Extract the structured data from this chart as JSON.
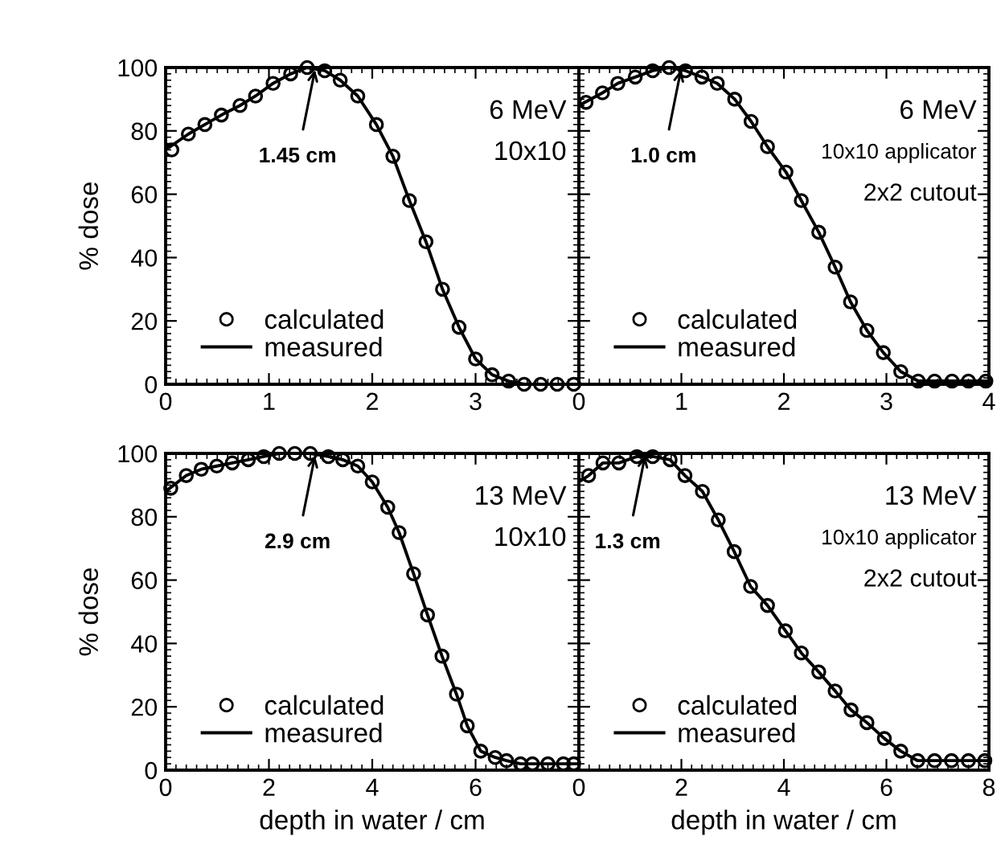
{
  "chart_data": [
    {
      "type": "line",
      "ylabel": "% dose",
      "xlim": [
        0,
        4
      ],
      "ylim": [
        0,
        100
      ],
      "xticks": [
        0,
        1,
        2,
        3,
        {
          "value": 4,
          "label": null
        }
      ],
      "yticks": [
        0,
        20,
        40,
        60,
        80,
        100
      ],
      "legend": "bottom left",
      "tick_labels": "xy",
      "annotations": [
        {
          "text": "1.45 cm",
          "x": 1.45,
          "y": 100
        },
        "6 MeV",
        "10x10"
      ],
      "series": [
        {
          "name": "calculated",
          "type": "scatter",
          "marker": "circle",
          "color": "#000000",
          "x": [
            0.06,
            0.22,
            0.38,
            0.54,
            0.72,
            0.87,
            1.04,
            1.21,
            1.37,
            1.54,
            1.69,
            1.86,
            2.04,
            2.2,
            2.36,
            2.52,
            2.68,
            2.84,
            3.0,
            3.16,
            3.32,
            3.47,
            3.63,
            3.79,
            3.95
          ],
          "values": [
            74,
            79,
            82,
            85,
            88,
            91,
            95,
            98,
            100,
            99,
            96,
            91,
            82,
            72,
            58,
            45,
            30,
            18,
            8,
            3,
            1,
            0,
            0,
            0,
            0
          ]
        },
        {
          "name": "measured",
          "line_style": "solid",
          "color": "#000000",
          "x": [
            0,
            0.22,
            0.38,
            0.54,
            0.72,
            0.87,
            1.04,
            1.21,
            1.37,
            1.54,
            1.69,
            1.86,
            2.04,
            2.2,
            2.36,
            2.52,
            2.68,
            2.84,
            3.0,
            3.16,
            3.32,
            3.47,
            3.63,
            3.79,
            3.95
          ],
          "values": [
            74,
            79,
            82,
            85,
            88,
            91,
            95,
            98,
            100,
            99,
            96,
            91,
            82,
            72,
            58,
            45,
            30,
            18,
            8,
            3,
            1,
            0,
            0,
            0,
            0
          ]
        }
      ]
    },
    {
      "type": "line",
      "xlim": [
        0,
        4
      ],
      "ylim": [
        0,
        100
      ],
      "xticks": [
        0,
        1,
        2,
        3,
        4
      ],
      "yticks": [
        {
          "value": 0,
          "label": null
        },
        {
          "value": 20,
          "label": null
        },
        {
          "value": 40,
          "label": null
        },
        {
          "value": 60,
          "label": null
        },
        {
          "value": 80,
          "label": null
        },
        {
          "value": 100,
          "label": null
        }
      ],
      "legend": "bottom left",
      "tick_labels": "x",
      "annotations": [
        {
          "text": "1.0 cm",
          "x": 1.0,
          "y": 100
        },
        "6 MeV",
        "10x10 applicator",
        "2x2 cutout"
      ],
      "series": [
        {
          "name": "calculated",
          "type": "scatter",
          "marker": "circle",
          "color": "#000000",
          "x": [
            0.07,
            0.23,
            0.38,
            0.55,
            0.72,
            0.88,
            1.04,
            1.2,
            1.35,
            1.52,
            1.68,
            1.84,
            2.02,
            2.17,
            2.34,
            2.5,
            2.65,
            2.81,
            2.97,
            3.14,
            3.31,
            3.47,
            3.64,
            3.8,
            3.97
          ],
          "values": [
            89,
            92,
            95,
            97,
            99,
            100,
            99,
            97,
            95,
            90,
            83,
            75,
            67,
            58,
            48,
            37,
            26,
            17,
            10,
            4,
            1,
            1,
            1,
            1,
            1
          ]
        },
        {
          "name": "measured",
          "line_style": "solid",
          "color": "#000000",
          "x": [
            0,
            0.23,
            0.38,
            0.55,
            0.72,
            0.88,
            1.04,
            1.2,
            1.35,
            1.52,
            1.68,
            1.84,
            2.02,
            2.17,
            2.34,
            2.5,
            2.65,
            2.81,
            2.97,
            3.14,
            3.31,
            3.47,
            3.64,
            3.8,
            4.0
          ],
          "values": [
            88,
            92,
            95,
            97,
            99,
            100,
            99,
            97,
            95,
            90,
            83,
            75,
            67,
            58,
            48,
            37,
            26,
            17,
            10,
            4,
            1,
            1,
            1,
            1,
            1
          ]
        }
      ]
    },
    {
      "type": "line",
      "xlabel": "depth in water / cm",
      "ylabel": "% dose",
      "xlim": [
        0,
        8
      ],
      "ylim": [
        0,
        100
      ],
      "xticks": [
        0,
        2,
        4,
        6,
        {
          "value": 8,
          "label": null
        }
      ],
      "yticks": [
        0,
        20,
        40,
        60,
        80,
        100
      ],
      "legend": "bottom left",
      "tick_labels": "xy",
      "annotations": [
        {
          "text": "2.9 cm",
          "x": 2.9,
          "y": 100
        },
        "13 MeV",
        "10x10"
      ],
      "series": [
        {
          "name": "calculated",
          "type": "scatter",
          "marker": "circle",
          "color": "#000000",
          "x": [
            0.1,
            0.4,
            0.69,
            0.99,
            1.29,
            1.6,
            1.9,
            2.2,
            2.5,
            2.8,
            3.15,
            3.43,
            3.72,
            4.0,
            4.3,
            4.52,
            4.8,
            5.07,
            5.35,
            5.63,
            5.84,
            6.1,
            6.38,
            6.6,
            6.87,
            7.1,
            7.4,
            7.7,
            7.9
          ],
          "values": [
            89,
            93,
            95,
            96,
            97,
            98,
            99,
            100,
            100,
            100,
            99,
            98,
            96,
            91,
            83,
            75,
            62,
            49,
            36,
            24,
            14,
            6,
            4,
            3,
            2,
            2,
            2,
            2,
            2
          ]
        },
        {
          "name": "measured",
          "line_style": "solid",
          "color": "#000000",
          "x": [
            0,
            0.4,
            0.69,
            0.99,
            1.29,
            1.6,
            1.9,
            2.2,
            2.5,
            2.8,
            3.15,
            3.43,
            3.72,
            4.0,
            4.3,
            4.52,
            4.8,
            5.07,
            5.35,
            5.63,
            5.84,
            6.1,
            6.38,
            6.6,
            6.87,
            7.1,
            7.4,
            7.7,
            8.0
          ],
          "values": [
            88,
            93,
            95,
            96,
            97,
            98,
            99,
            100,
            100,
            100,
            99,
            98,
            96,
            91,
            83,
            75,
            62,
            49,
            36,
            24,
            14,
            6,
            4,
            3,
            2,
            2,
            2,
            2,
            2
          ]
        }
      ]
    },
    {
      "type": "line",
      "xlabel": "depth in water / cm",
      "xlim": [
        0,
        8
      ],
      "ylim": [
        0,
        100
      ],
      "xticks": [
        0,
        2,
        4,
        6,
        8
      ],
      "yticks": [
        {
          "value": 0,
          "label": null
        },
        {
          "value": 20,
          "label": null
        },
        {
          "value": 40,
          "label": null
        },
        {
          "value": 60,
          "label": null
        },
        {
          "value": 80,
          "label": null
        },
        {
          "value": 100,
          "label": null
        }
      ],
      "legend": "bottom left",
      "tick_labels": "x",
      "annotations": [
        {
          "text": "1.3 cm",
          "x": 1.3,
          "y": 100
        },
        "13 MeV",
        "10x10 applicator",
        "2x2 cutout"
      ],
      "series": [
        {
          "name": "calculated",
          "type": "scatter",
          "marker": "circle",
          "color": "#000000",
          "x": [
            0.19,
            0.47,
            0.78,
            1.13,
            1.44,
            1.78,
            2.07,
            2.41,
            2.72,
            3.03,
            3.35,
            3.68,
            4.03,
            4.34,
            4.68,
            5.0,
            5.31,
            5.62,
            5.96,
            6.28,
            6.61,
            6.94,
            7.27,
            7.6,
            7.92
          ],
          "values": [
            93,
            97,
            97,
            99,
            99,
            98,
            93,
            88,
            79,
            69,
            58,
            52,
            44,
            37,
            31,
            25,
            19,
            15,
            10,
            6,
            3,
            3,
            3,
            3,
            3
          ]
        },
        {
          "name": "measured",
          "line_style": "solid",
          "color": "#000000",
          "x": [
            0,
            0.19,
            0.47,
            0.78,
            1.13,
            1.44,
            1.78,
            2.07,
            2.41,
            2.72,
            3.03,
            3.35,
            3.68,
            4.03,
            4.34,
            4.68,
            5.0,
            5.31,
            5.62,
            5.96,
            6.28,
            6.61,
            6.94,
            7.27,
            7.6,
            8.0
          ],
          "values": [
            91,
            93,
            97,
            97,
            99,
            99,
            98,
            93,
            88,
            79,
            69,
            58,
            52,
            44,
            37,
            31,
            25,
            19,
            15,
            10,
            6,
            3,
            3,
            3,
            3,
            3
          ]
        }
      ]
    }
  ]
}
